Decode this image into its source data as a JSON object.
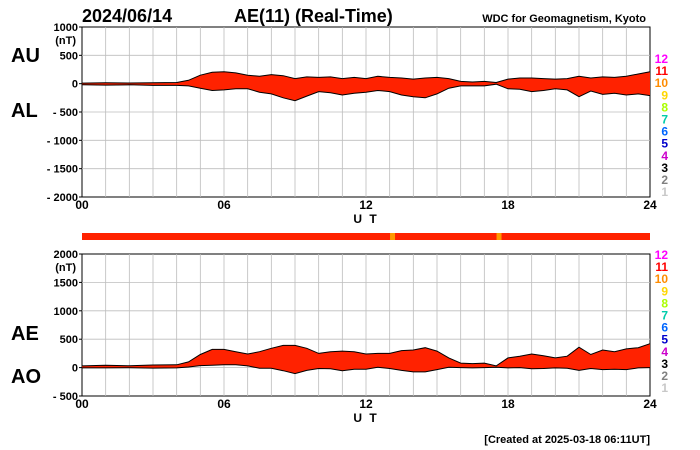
{
  "header": {
    "date": "2024/06/14",
    "title": "AE(11) (Real-Time)",
    "source": "WDC for Geomagnetism, Kyoto"
  },
  "footer": {
    "created": "[Created at 2025-03-18 06:11UT]"
  },
  "legend": {
    "labels": [
      "12",
      "11",
      "10",
      "9",
      "8",
      "7",
      "6",
      "5",
      "4",
      "3",
      "2",
      "1"
    ],
    "colors": [
      "#ff00ff",
      "#ff0000",
      "#ff8c00",
      "#ffd700",
      "#aaff00",
      "#00ccaa",
      "#0066ff",
      "#0000cc",
      "#cc00cc",
      "#000000",
      "#808080",
      "#c8c8c8"
    ]
  },
  "status_bar": {
    "base_color": "#ff2200",
    "accent_color": "#ff9900",
    "accent_hours": [
      13.1,
      17.6
    ]
  },
  "chart_data": [
    {
      "type": "area",
      "panel": "top",
      "unit": "(nT)",
      "xlabel": "U T",
      "xlim": [
        0,
        24
      ],
      "x_ticks": [
        "00",
        "06",
        "12",
        "18",
        "24"
      ],
      "ylim": [
        -2000,
        1000
      ],
      "y_ticks": [
        "1000",
        "500",
        "0",
        "- 500",
        "- 1000",
        "- 1500",
        "- 2000"
      ],
      "side_labels": [
        "AU",
        "AL"
      ],
      "x": [
        0,
        1,
        2,
        3,
        4,
        4.5,
        5,
        5.5,
        6,
        6.5,
        7,
        7.5,
        8,
        8.5,
        9,
        9.5,
        10,
        10.5,
        11,
        11.5,
        12,
        12.5,
        13,
        13.5,
        14,
        14.5,
        15,
        15.5,
        16,
        16.5,
        17,
        17.5,
        18,
        18.5,
        19,
        19.5,
        20,
        20.5,
        21,
        21.5,
        22,
        22.5,
        23,
        23.5,
        24
      ],
      "series": [
        {
          "name": "AU",
          "values": [
            10,
            15,
            12,
            15,
            20,
            60,
            150,
            200,
            210,
            190,
            150,
            130,
            160,
            140,
            90,
            120,
            110,
            120,
            90,
            110,
            90,
            130,
            110,
            100,
            80,
            100,
            110,
            90,
            40,
            30,
            40,
            20,
            80,
            100,
            100,
            90,
            80,
            90,
            130,
            100,
            120,
            110,
            130,
            170,
            210
          ]
        },
        {
          "name": "AL",
          "values": [
            -20,
            -25,
            -20,
            -30,
            -30,
            -40,
            -80,
            -120,
            -110,
            -90,
            -90,
            -150,
            -180,
            -250,
            -300,
            -220,
            -140,
            -160,
            -200,
            -170,
            -150,
            -120,
            -140,
            -200,
            -230,
            -250,
            -180,
            -80,
            -40,
            -40,
            -40,
            -10,
            -90,
            -100,
            -140,
            -120,
            -90,
            -110,
            -230,
            -130,
            -190,
            -170,
            -200,
            -180,
            -210
          ]
        }
      ]
    },
    {
      "type": "area",
      "panel": "bottom",
      "unit": "(nT)",
      "xlabel": "U T",
      "xlim": [
        0,
        24
      ],
      "x_ticks": [
        "00",
        "06",
        "12",
        "18",
        "24"
      ],
      "ylim": [
        -500,
        2000
      ],
      "y_ticks": [
        "2000",
        "1500",
        "1000",
        "500",
        "0",
        "- 500"
      ],
      "side_labels": [
        "AE",
        "AO"
      ],
      "x": [
        0,
        1,
        2,
        3,
        4,
        4.5,
        5,
        5.5,
        6,
        6.5,
        7,
        7.5,
        8,
        8.5,
        9,
        9.5,
        10,
        10.5,
        11,
        11.5,
        12,
        12.5,
        13,
        13.5,
        14,
        14.5,
        15,
        15.5,
        16,
        16.5,
        17,
        17.5,
        18,
        18.5,
        19,
        19.5,
        20,
        20.5,
        21,
        21.5,
        22,
        22.5,
        23,
        23.5,
        24
      ],
      "series": [
        {
          "name": "AE",
          "values": [
            30,
            40,
            32,
            45,
            50,
            100,
            230,
            320,
            320,
            280,
            240,
            280,
            340,
            390,
            390,
            340,
            250,
            280,
            290,
            280,
            240,
            250,
            250,
            300,
            310,
            350,
            290,
            170,
            80,
            70,
            80,
            30,
            170,
            200,
            240,
            210,
            170,
            200,
            360,
            230,
            310,
            280,
            330,
            350,
            420
          ]
        },
        {
          "name": "AO",
          "values": [
            -5,
            -5,
            -4,
            -8,
            -5,
            10,
            35,
            40,
            50,
            50,
            30,
            -10,
            -10,
            -55,
            -105,
            -50,
            -15,
            -20,
            -55,
            -30,
            -30,
            5,
            -15,
            -50,
            -75,
            -75,
            -35,
            5,
            0,
            -5,
            0,
            5,
            -5,
            0,
            -20,
            -15,
            -5,
            -10,
            -50,
            -15,
            -35,
            -30,
            -35,
            -5,
            0
          ]
        }
      ]
    }
  ]
}
